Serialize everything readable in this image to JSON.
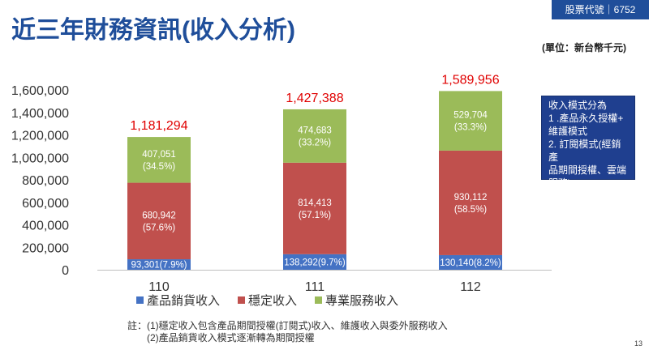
{
  "header": {
    "stock_label": "股票代號｜6752",
    "title": "近三年財務資訊(收入分析)",
    "unit": "(單位：新台幣千元)"
  },
  "chart_data": {
    "type": "bar",
    "stacked": true,
    "categories": [
      "110",
      "111",
      "112"
    ],
    "ylim": [
      0,
      1600000
    ],
    "yticks": [
      0,
      200000,
      400000,
      600000,
      800000,
      1000000,
      1200000,
      1400000,
      1600000
    ],
    "ytick_labels": [
      "0",
      "200,000",
      "400,000",
      "600,000",
      "800,000",
      "1,000,000",
      "1,200,000",
      "1,400,000",
      "1,600,000"
    ],
    "grid": false,
    "legend_position": "bottom",
    "colors": [
      "#4472c4",
      "#c0504d",
      "#9bbb59"
    ],
    "series": [
      {
        "name": "產品銷貨收入",
        "values": [
          93301,
          138292,
          130140
        ],
        "labels": [
          "93,301(7.9%)",
          "138,292(9.7%)",
          "130,140(8.2%)"
        ]
      },
      {
        "name": "穩定收入",
        "values": [
          680942,
          814413,
          930112
        ],
        "labels": [
          "680,942\n(57.6%)",
          "814,413\n(57.1%)",
          "930,112\n(58.5%)"
        ]
      },
      {
        "name": "專業服務收入",
        "values": [
          407051,
          474683,
          529704
        ],
        "labels": [
          "407,051\n(34.5%)",
          "474,683\n(33.2%)",
          "529,704\n(33.3%)"
        ]
      }
    ],
    "totals": [
      1181294,
      1427388,
      1589956
    ],
    "total_labels": [
      "1,181,294",
      "1,427,388",
      "1,589,956"
    ]
  },
  "info_box": {
    "lines": [
      "收入模式分為",
      "1 .產品永久授權+",
      "維護模式",
      "2. 訂閱模式(經銷產",
      "品期間授權、雲端",
      "服務)"
    ]
  },
  "note": {
    "prefix": "註：",
    "lines": [
      "(1)穩定收入包含產品期間授權(訂閱式)收入、維護收入與委外服務收入",
      "(2)產品銷貨收入模式逐漸轉為期間授權"
    ]
  },
  "page_number": "13"
}
